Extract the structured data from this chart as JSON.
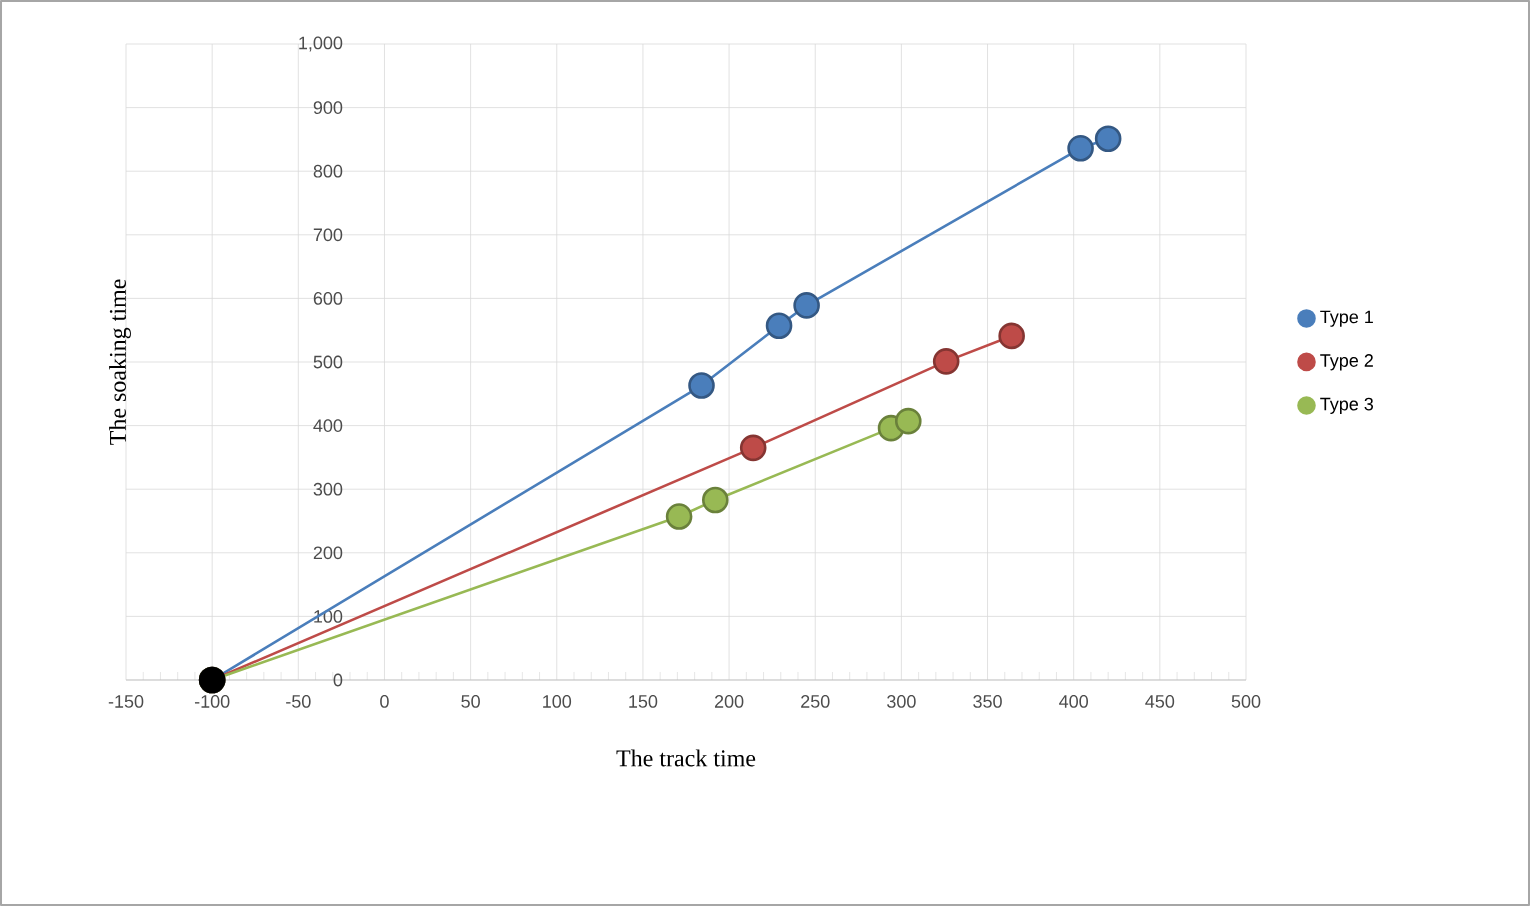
{
  "chart_data": {
    "type": "line",
    "xlabel": "The track time",
    "ylabel": "The soaking time",
    "xlim": [
      -150,
      500
    ],
    "xticks": [
      -150,
      -100,
      -50,
      0,
      50,
      100,
      150,
      200,
      250,
      300,
      350,
      400,
      450,
      500
    ],
    "ylim": [
      0,
      1000
    ],
    "yticks": [
      0,
      100,
      200,
      300,
      400,
      500,
      600,
      700,
      800,
      900,
      {
        "value": 1000,
        "label": "1,000"
      }
    ],
    "grid": true,
    "legend": "right",
    "marker": "circle",
    "line_style": "solid",
    "series": [
      {
        "name": "Type 1",
        "color": "#4a7ebb",
        "x": [
          -100,
          184,
          229,
          245,
          404,
          420
        ],
        "values": [
          0,
          463,
          557,
          589,
          836,
          851
        ]
      },
      {
        "name": "Type 2",
        "color": "#be4b48",
        "x": [
          -100,
          214,
          326,
          364
        ],
        "values": [
          0,
          365,
          501,
          541
        ]
      },
      {
        "name": "Type 3",
        "color": "#98b954",
        "x": [
          -100,
          171,
          192,
          294,
          304
        ],
        "values": [
          0,
          257,
          283,
          396,
          407
        ]
      },
      {
        "color": "#000000",
        "x": [
          -100
        ],
        "values": [
          0
        ]
      }
    ]
  }
}
